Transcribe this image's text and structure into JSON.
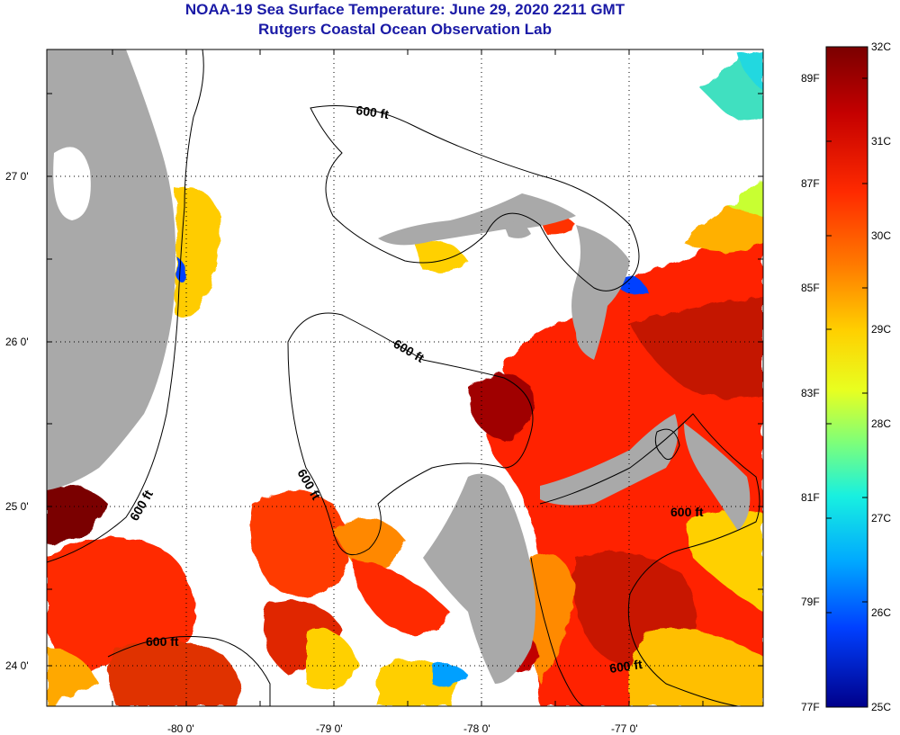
{
  "title": {
    "line1": "NOAA-19 Sea Surface Temperature:  June 29, 2020 2211 GMT",
    "line2": "Rutgers Coastal Ocean Observation Lab"
  },
  "axes": {
    "lat_labels": [
      "27 0'",
      "26 0'",
      "25 0'",
      "24 0'"
    ],
    "lon_labels": [
      "-80 0'",
      "-79 0'",
      "-78 0'",
      "-77 0'"
    ]
  },
  "contour_labels": [
    "600 ft",
    "600 ft",
    "600 ft",
    "600 ft",
    "600 ft",
    "600 ft"
  ],
  "colorbar": {
    "celsius": [
      "32C",
      "31C",
      "30C",
      "29C",
      "28C",
      "27C",
      "26C",
      "25C"
    ],
    "fahrenheit": [
      "89F",
      "87F",
      "85F",
      "83F",
      "81F",
      "79F",
      "77F"
    ],
    "gradient_stops": [
      "#7a0000",
      "#c40000",
      "#ff2a00",
      "#ff7a00",
      "#ffd000",
      "#e8ff20",
      "#7dff7a",
      "#18f0e0",
      "#00a8ff",
      "#0040ff",
      "#00008a"
    ]
  },
  "colors": {
    "land": "#a9a9a9",
    "cloud": "#ffffff",
    "frame": "#000000",
    "title": "#1a1aa6"
  }
}
